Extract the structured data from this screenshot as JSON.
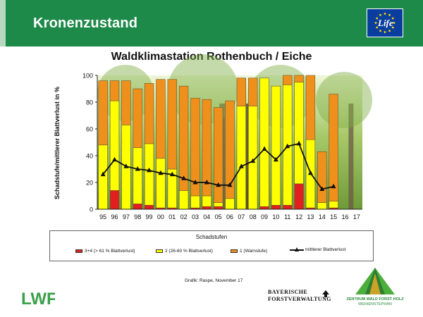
{
  "header": {
    "title": "Kronenzustand",
    "bg_color": "#1e8a4a",
    "logo_text": "Life"
  },
  "chart_data": {
    "type": "bar",
    "title": "Waldklimastation Rothenbuch / Eiche",
    "ylabel": "Schadstufe/mittlerer Blattverlust in %",
    "xlabel": "",
    "ylim": [
      0,
      100
    ],
    "yticks": [
      0,
      20,
      40,
      60,
      80,
      100
    ],
    "categories": [
      "95",
      "96",
      "97",
      "98",
      "99",
      "00",
      "01",
      "02",
      "03",
      "04",
      "05",
      "06",
      "07",
      "08",
      "09",
      "10",
      "11",
      "12",
      "13",
      "14",
      "15",
      "16",
      "17"
    ],
    "stacked": true,
    "series": [
      {
        "name": "3+4 (> 61 % Blattverlust)",
        "color": "#e31e1e",
        "values": [
          0,
          14,
          0,
          4,
          3,
          1,
          1,
          0,
          1,
          2,
          2,
          0,
          0,
          0,
          2,
          3,
          3,
          19,
          1,
          0,
          1,
          null,
          null
        ]
      },
      {
        "name": "2 (26-60 % Blattverlust)",
        "color": "#ffff00",
        "values": [
          48,
          67,
          63,
          42,
          46,
          37,
          29,
          14,
          9,
          8,
          3,
          8,
          77,
          77,
          96,
          89,
          90,
          76,
          51,
          5,
          5,
          null,
          null
        ]
      },
      {
        "name": "1 (Warnstufe)",
        "color": "#f0901c",
        "values": [
          48,
          15,
          33,
          44,
          45,
          59,
          67,
          78,
          73,
          72,
          71,
          73,
          21,
          21,
          0,
          0,
          7,
          5,
          48,
          38,
          80,
          null,
          null
        ]
      },
      {
        "name": "mittlerer Blattverlust",
        "type": "line",
        "color": "#111111",
        "values": [
          26,
          37,
          32,
          30,
          29,
          27,
          26,
          23,
          20,
          20,
          18,
          18,
          32,
          36,
          45,
          37,
          47,
          49,
          27,
          15,
          17,
          null,
          null
        ]
      }
    ],
    "legend": {
      "title": "Schadstufen",
      "position": "bottom"
    },
    "grid": false,
    "background": "forest photo"
  },
  "legend_title": "Schadstufen",
  "legend_items": [
    "3+4 (> 61 % Blattverlust)",
    "2 (26-60 % Blattverlust)",
    "1 (Warnstufe)",
    "mittlerer Blattverlust"
  ],
  "credit": "Grafik: Raspe, November 17",
  "logos": {
    "lwf": "LWF",
    "bayerische_line1": "BAYERISCHE",
    "bayerische_line2": "FORSTVERWALTUNG",
    "zentrum_line1": "ZENTRUM WALD FORST HOLZ",
    "zentrum_line2": "WEIHENSTEPHAN"
  }
}
